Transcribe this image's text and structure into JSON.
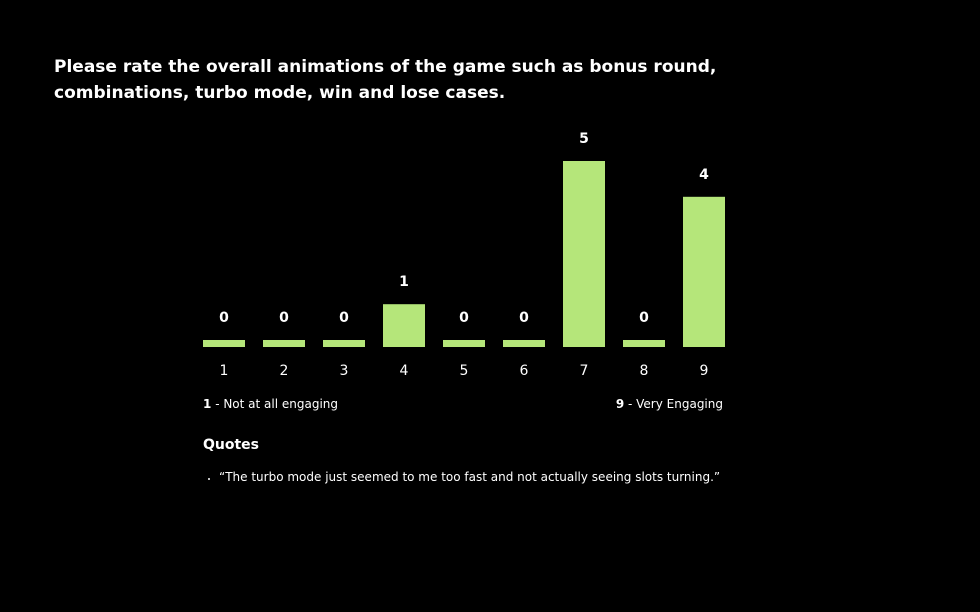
{
  "chart_data": {
    "type": "bar",
    "title": "Please rate the overall animations of the game such as bonus round, combinations, turbo mode, win and lose cases.",
    "categories": [
      "1",
      "2",
      "3",
      "4",
      "5",
      "6",
      "7",
      "8",
      "9"
    ],
    "values": [
      0,
      0,
      0,
      1,
      0,
      0,
      5,
      0,
      4
    ],
    "color": "#b5e67a",
    "scale_low": {
      "key": "1",
      "text": "- Not at all engaging"
    },
    "scale_high": {
      "key": "9",
      "text": "- Very Engaging"
    }
  },
  "quotes": {
    "heading": "Quotes",
    "items": [
      "“The turbo mode just seemed to me too fast and not actually seeing slots turning.”"
    ]
  }
}
